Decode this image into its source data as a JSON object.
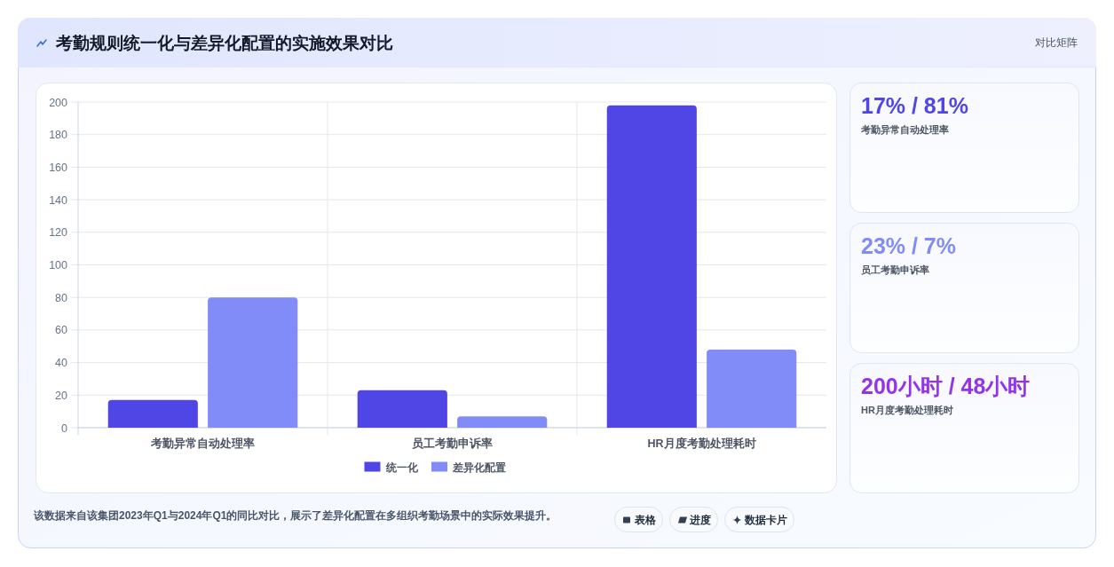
{
  "chart_data": [
    {
      "type": "bar",
      "title": "考勤规则统一化与差异化配置的实施效果对比",
      "categories": [
        "考勤异常自动处理率",
        "员工考勤申诉率",
        "HR月度考勤处理耗时"
      ],
      "series": [
        {
          "name": "统一化",
          "color": "#4f46e5",
          "values": [
            17,
            23,
            198
          ]
        },
        {
          "name": "差异化配置",
          "color": "#818cf8",
          "values": [
            80,
            7,
            48
          ]
        }
      ],
      "ylim": [
        0,
        200
      ],
      "yticks": [
        0,
        20,
        40,
        60,
        80,
        100,
        120,
        140,
        160,
        180,
        200
      ],
      "grid": true,
      "legend": "bottom",
      "annotations": [
        "该数据来自该集团2023年Q1与2024年Q1的同比对比，展示了差异化配置在多组织考勤场景中的实际效果提升。",
        "表格",
        "进度",
        "数据卡片"
      ]
    },
    {
      "type": "other",
      "subtitle": "对比矩阵",
      "annotations": [
        "17% / 81%",
        "考勤异常自动处理率",
        "23% / 7%",
        "员工考勤申诉率",
        "200小时 / 48小时",
        "HR月度考勤处理耗时"
      ],
      "colors": [
        "#4f46e5",
        "#818cf8",
        "#9333ea"
      ]
    }
  ]
}
